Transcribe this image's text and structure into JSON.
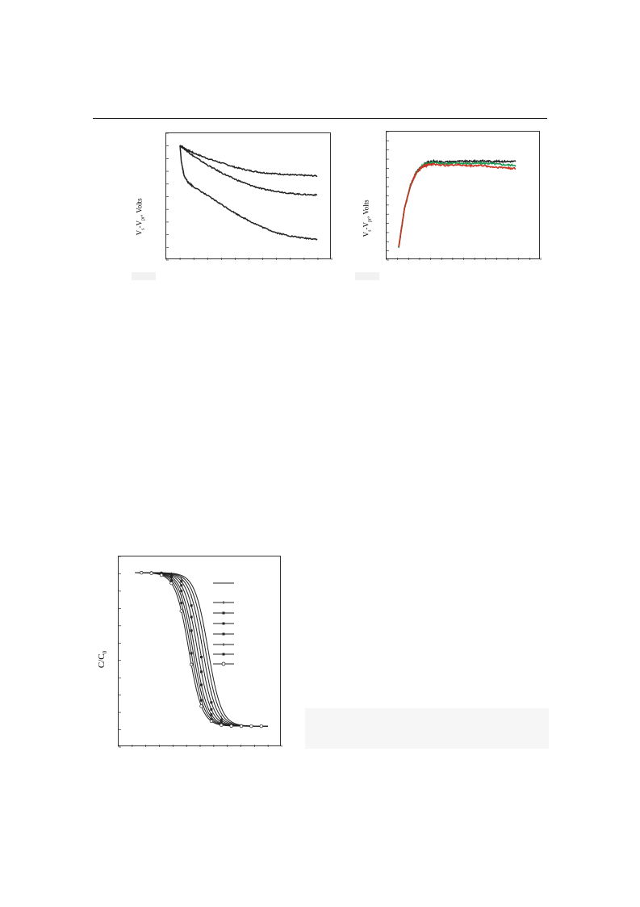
{
  "chart_data": [
    {
      "type": "line",
      "ylabel": "V_s-V_pr, Volts",
      "series": [
        {
          "points": [
            [
              0,
              1.0
            ],
            [
              0.05,
              0.96
            ],
            [
              0.1,
              0.93
            ],
            [
              0.2,
              0.88
            ],
            [
              0.3,
              0.84
            ],
            [
              0.4,
              0.8
            ],
            [
              0.5,
              0.77
            ],
            [
              0.6,
              0.75
            ],
            [
              0.7,
              0.74
            ],
            [
              0.8,
              0.73
            ],
            [
              0.9,
              0.725
            ],
            [
              1.0,
              0.72
            ]
          ]
        },
        {
          "points": [
            [
              0,
              1.0
            ],
            [
              0.05,
              0.95
            ],
            [
              0.1,
              0.9
            ],
            [
              0.2,
              0.82
            ],
            [
              0.3,
              0.75
            ],
            [
              0.4,
              0.69
            ],
            [
              0.5,
              0.64
            ],
            [
              0.6,
              0.6
            ],
            [
              0.7,
              0.58
            ],
            [
              0.8,
              0.56
            ],
            [
              0.9,
              0.55
            ],
            [
              1.0,
              0.545
            ]
          ]
        },
        {
          "points": [
            [
              0,
              1.0
            ],
            [
              0.01,
              0.85
            ],
            [
              0.03,
              0.72
            ],
            [
              0.06,
              0.66
            ],
            [
              0.1,
              0.62
            ],
            [
              0.2,
              0.54
            ],
            [
              0.3,
              0.46
            ],
            [
              0.4,
              0.38
            ],
            [
              0.5,
              0.31
            ],
            [
              0.6,
              0.25
            ],
            [
              0.7,
              0.2
            ],
            [
              0.8,
              0.17
            ],
            [
              0.9,
              0.15
            ],
            [
              1.0,
              0.14
            ]
          ]
        }
      ]
    },
    {
      "type": "line",
      "ylabel": "V_s-V_pr, Volts",
      "series": [
        {
          "color": "#222222",
          "points": [
            [
              0,
              0.05
            ],
            [
              0.05,
              0.4
            ],
            [
              0.1,
              0.6
            ],
            [
              0.15,
              0.72
            ],
            [
              0.2,
              0.78
            ],
            [
              0.25,
              0.81
            ],
            [
              0.3,
              0.82
            ],
            [
              0.4,
              0.815
            ],
            [
              0.5,
              0.82
            ],
            [
              0.6,
              0.82
            ],
            [
              0.7,
              0.825
            ],
            [
              0.8,
              0.82
            ],
            [
              0.9,
              0.82
            ],
            [
              1.0,
              0.82
            ]
          ]
        },
        {
          "color": "#1f9a57",
          "points": [
            [
              0,
              0.05
            ],
            [
              0.05,
              0.4
            ],
            [
              0.1,
              0.6
            ],
            [
              0.15,
              0.72
            ],
            [
              0.2,
              0.78
            ],
            [
              0.25,
              0.8
            ],
            [
              0.3,
              0.81
            ],
            [
              0.4,
              0.8
            ],
            [
              0.5,
              0.805
            ],
            [
              0.6,
              0.8
            ],
            [
              0.7,
              0.805
            ],
            [
              0.8,
              0.8
            ],
            [
              0.9,
              0.79
            ],
            [
              1.0,
              0.785
            ]
          ]
        },
        {
          "color": "#cc3322",
          "points": [
            [
              0,
              0.05
            ],
            [
              0.05,
              0.4
            ],
            [
              0.1,
              0.6
            ],
            [
              0.15,
              0.72
            ],
            [
              0.2,
              0.77
            ],
            [
              0.25,
              0.79
            ],
            [
              0.3,
              0.795
            ],
            [
              0.4,
              0.785
            ],
            [
              0.5,
              0.79
            ],
            [
              0.6,
              0.78
            ],
            [
              0.7,
              0.785
            ],
            [
              0.8,
              0.77
            ],
            [
              0.9,
              0.765
            ],
            [
              1.0,
              0.755
            ]
          ]
        }
      ]
    },
    {
      "type": "line",
      "ylabel": "C/C_0",
      "series": [
        {
          "marker": "none",
          "center": 0.55
        },
        {
          "marker": "none",
          "center": 0.53
        },
        {
          "marker": "tick",
          "center": 0.51
        },
        {
          "marker": "filled-square",
          "center": 0.49
        },
        {
          "marker": "filled-triangle",
          "center": 0.47
        },
        {
          "marker": "filled-diamond",
          "center": 0.45
        },
        {
          "marker": "tick",
          "center": 0.435
        },
        {
          "marker": "filled-square",
          "center": 0.42
        },
        {
          "marker": "open-circle",
          "center": 0.405
        }
      ]
    }
  ],
  "labels": {
    "left_ylabel_main": "V",
    "left_ylabel_sub1": "s",
    "left_ylabel_mid": "-V",
    "left_ylabel_sub2": "pr",
    "left_ylabel_tail": ", Volts",
    "bottom_ylabel_main": "C/C",
    "bottom_ylabel_sub": "0"
  }
}
